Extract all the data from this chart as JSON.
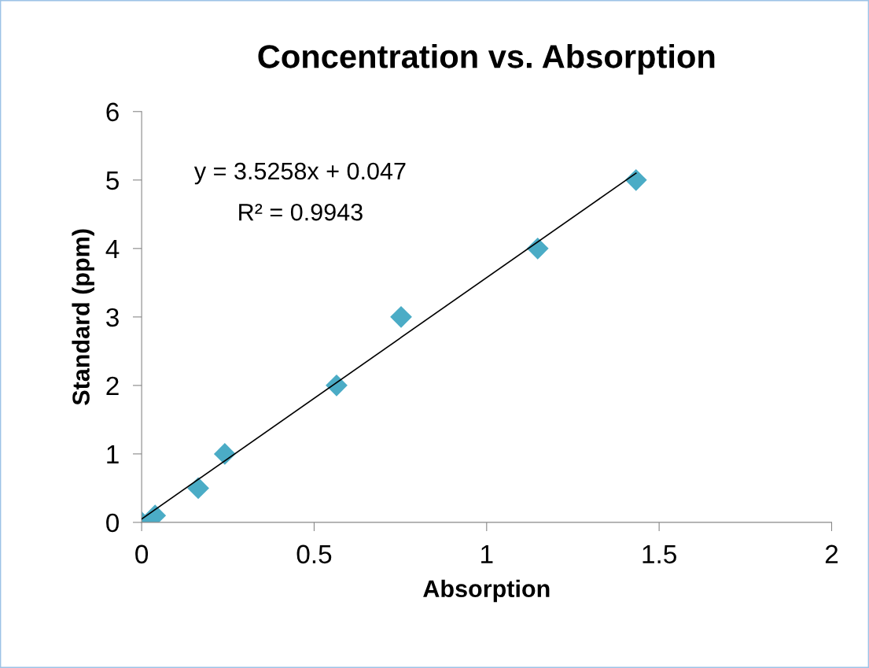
{
  "chart_data": {
    "type": "scatter",
    "title": "Concentration vs. Absorption",
    "xlabel": "Absorption",
    "ylabel": "Standard (ppm)",
    "series": [
      {
        "color": "#4bacc6",
        "marker": "diamond",
        "x": [
          0,
          0.039,
          0.164,
          0.241,
          0.565,
          0.752,
          1.148,
          1.433
        ],
        "values": [
          0,
          0.1,
          0.5,
          1,
          2,
          3,
          4,
          5
        ]
      },
      {
        "type": "line",
        "color": "#000000",
        "marker": "none",
        "x": [
          0,
          1.433
        ],
        "values": [
          0.05,
          5.1
        ]
      }
    ],
    "xlim": [
      0,
      2
    ],
    "xticks": [
      0,
      0.5,
      1,
      1.5,
      2
    ],
    "ylim": [
      0,
      6
    ],
    "yticks": [
      0,
      1,
      2,
      3,
      4,
      5,
      6
    ],
    "grid": false,
    "legend": false,
    "annotations": [
      "y = 3.5258x + 0.047",
      "R² = 0.9943"
    ]
  }
}
